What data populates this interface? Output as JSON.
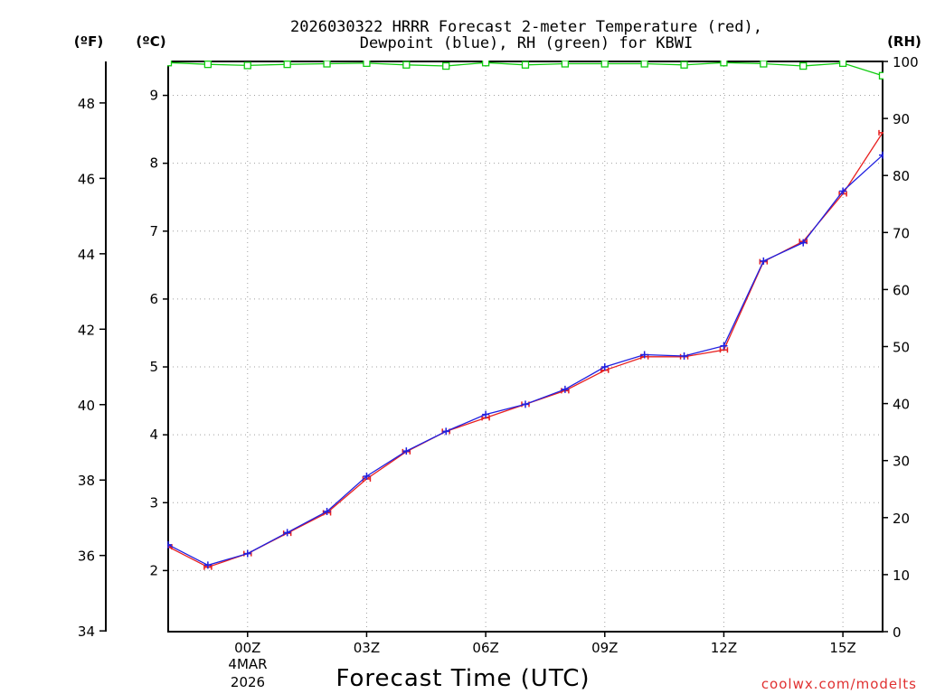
{
  "chart_data": {
    "type": "line",
    "title": [
      "2026030322 HRRR Forecast 2-meter Temperature (red),",
      "Dewpoint (blue), RH (green) for KBWI"
    ],
    "unit_labels": {
      "fahrenheit": "(ºF)",
      "celsius": "(ºC)",
      "rh": "(RH)"
    },
    "xlabel": "Forecast Time (UTC)",
    "credit": "coolwx.com/modelts",
    "x_hours": [
      -2,
      -1,
      0,
      1,
      2,
      3,
      4,
      5,
      6,
      7,
      8,
      9,
      10,
      11,
      12,
      13,
      14,
      15,
      16
    ],
    "xlim": [
      -2,
      16
    ],
    "x_ticks": [
      {
        "hour": 0,
        "label": "00Z"
      },
      {
        "hour": 3,
        "label": "03Z"
      },
      {
        "hour": 6,
        "label": "06Z"
      },
      {
        "hour": 9,
        "label": "09Z"
      },
      {
        "hour": 12,
        "label": "12Z"
      },
      {
        "hour": 15,
        "label": "15Z"
      }
    ],
    "date_label": [
      "4MAR",
      "2026"
    ],
    "celsius_axis": {
      "ylim": [
        1.1,
        9.5
      ],
      "ticks": [
        2,
        3,
        4,
        5,
        6,
        7,
        8,
        9
      ]
    },
    "fahrenheit_axis": {
      "ticks": [
        34,
        36,
        38,
        40,
        42,
        44,
        46,
        48
      ]
    },
    "rh_axis": {
      "ylim": [
        0,
        100
      ],
      "ticks": [
        0,
        10,
        20,
        30,
        40,
        50,
        60,
        70,
        80,
        90,
        100
      ]
    },
    "series": [
      {
        "name": "Temperature",
        "units": "C",
        "color": "#e82020",
        "marker": "dash",
        "values": [
          2.35,
          2.05,
          2.25,
          2.55,
          2.85,
          3.35,
          3.75,
          4.05,
          4.25,
          4.45,
          4.65,
          4.95,
          5.15,
          5.15,
          5.25,
          6.55,
          6.85,
          7.55,
          8.45
        ]
      },
      {
        "name": "Dewpoint",
        "units": "C",
        "color": "#2020e0",
        "marker": "plus",
        "values": [
          2.38,
          2.08,
          2.25,
          2.56,
          2.87,
          3.39,
          3.76,
          4.05,
          4.3,
          4.45,
          4.67,
          5.0,
          5.18,
          5.16,
          5.31,
          6.56,
          6.83,
          7.59,
          8.12
        ]
      },
      {
        "name": "RH",
        "units": "%",
        "color": "#10cc10",
        "marker": "square",
        "values": [
          99.8,
          99.5,
          99.3,
          99.5,
          99.6,
          99.7,
          99.4,
          99.2,
          99.8,
          99.4,
          99.6,
          99.6,
          99.6,
          99.4,
          99.8,
          99.6,
          99.2,
          99.7,
          97.5
        ]
      }
    ]
  }
}
